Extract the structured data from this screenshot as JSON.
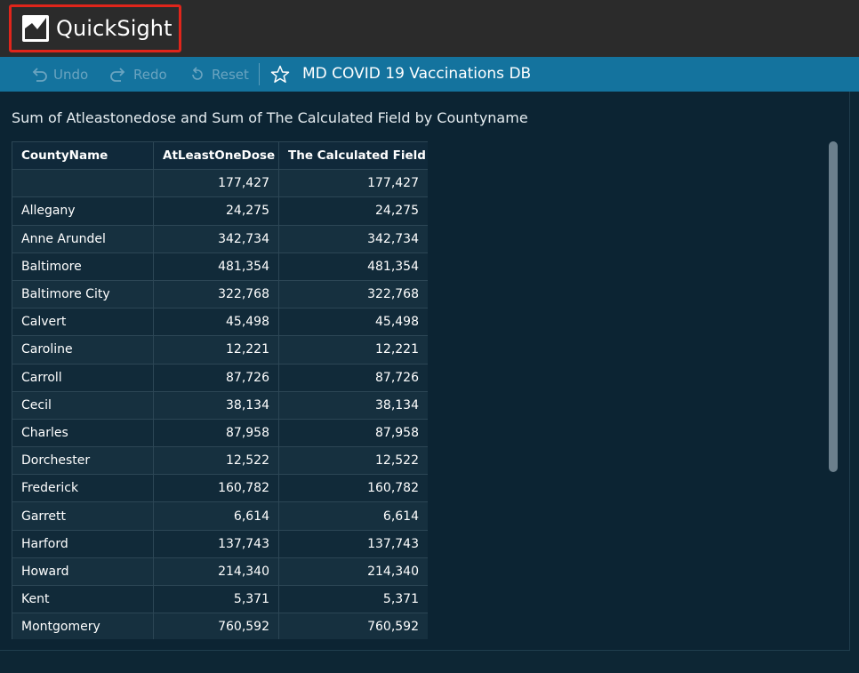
{
  "app": {
    "name": "QuickSight"
  },
  "toolbar": {
    "undo_label": "Undo",
    "redo_label": "Redo",
    "reset_label": "Reset",
    "dashboard_title": "MD COVID 19 Vaccinations DB"
  },
  "visual": {
    "title": "Sum of Atleastonedose and Sum of The Calculated Field by Countyname",
    "columns": [
      "CountyName",
      "AtLeastOneDose",
      "The Calculated Field"
    ],
    "rows": [
      [
        "",
        "177,427",
        "177,427"
      ],
      [
        "Allegany",
        "24,275",
        "24,275"
      ],
      [
        "Anne Arundel",
        "342,734",
        "342,734"
      ],
      [
        "Baltimore",
        "481,354",
        "481,354"
      ],
      [
        "Baltimore City",
        "322,768",
        "322,768"
      ],
      [
        "Calvert",
        "45,498",
        "45,498"
      ],
      [
        "Caroline",
        "12,221",
        "12,221"
      ],
      [
        "Carroll",
        "87,726",
        "87,726"
      ],
      [
        "Cecil",
        "38,134",
        "38,134"
      ],
      [
        "Charles",
        "87,958",
        "87,958"
      ],
      [
        "Dorchester",
        "12,522",
        "12,522"
      ],
      [
        "Frederick",
        "160,782",
        "160,782"
      ],
      [
        "Garrett",
        "6,614",
        "6,614"
      ],
      [
        "Harford",
        "137,743",
        "137,743"
      ],
      [
        "Howard",
        "214,340",
        "214,340"
      ],
      [
        "Kent",
        "5,371",
        "5,371"
      ],
      [
        "Montgomery",
        "760,592",
        "760,592"
      ]
    ]
  },
  "colors": {
    "highlight_border": "#e0251b",
    "toolbar_bg": "#14739e",
    "panel_bg": "#0c2433"
  },
  "icons": [
    "quicksight-logo-icon",
    "undo-icon",
    "redo-icon",
    "reset-icon",
    "star-icon"
  ]
}
